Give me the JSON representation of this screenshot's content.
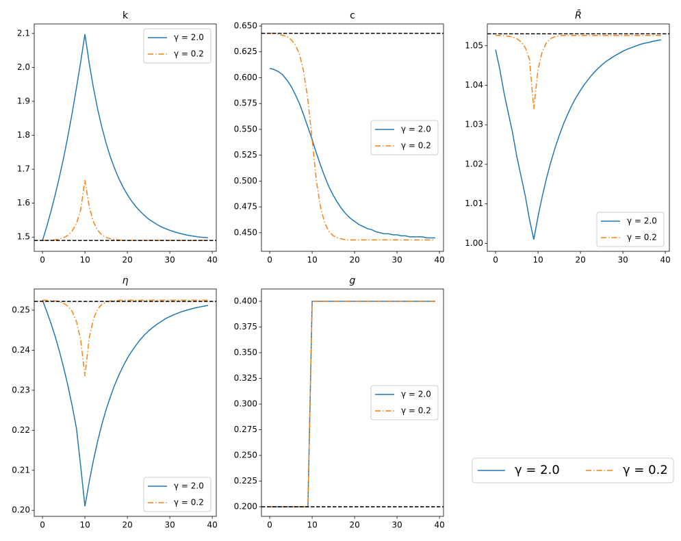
{
  "chart_data": [
    {
      "type": "line",
      "title": "k",
      "legend_loc": "upper right",
      "hline": 1.49,
      "hline_color": "#000000",
      "xlim": [
        -1.95,
        40.95
      ],
      "xticks": [
        0,
        10,
        20,
        30,
        40
      ],
      "ylim": [
        1.458,
        2.128
      ],
      "yticks": [
        1.5,
        1.6,
        1.7,
        1.8,
        1.9,
        {
          "value": 2,
          "label": "2.0"
        },
        2.1
      ],
      "x": [
        0,
        1,
        2,
        3,
        4,
        5,
        6,
        7,
        8,
        9,
        10,
        11,
        12,
        13,
        14,
        15,
        16,
        17,
        18,
        19,
        20,
        21,
        22,
        23,
        24,
        25,
        26,
        27,
        28,
        29,
        30,
        31,
        32,
        33,
        34,
        35,
        36,
        37,
        38,
        39
      ],
      "series": [
        {
          "name": "γ = 2.0",
          "color": "#1f77b4",
          "style": "solid",
          "values": [
            1.49,
            1.531,
            1.576,
            1.625,
            1.678,
            1.735,
            1.798,
            1.866,
            1.94,
            2.016,
            2.098,
            2.013,
            1.94,
            1.877,
            1.823,
            1.776,
            1.736,
            1.702,
            1.672,
            1.647,
            1.625,
            1.606,
            1.59,
            1.576,
            1.564,
            1.553,
            1.545,
            1.537,
            1.53,
            1.525,
            1.52,
            1.516,
            1.512,
            1.509,
            1.506,
            1.504,
            1.502,
            1.5,
            1.499,
            1.498
          ]
        },
        {
          "name": "γ = 0.2",
          "color": "#ff7f0e",
          "style": "dashdot",
          "values": [
            1.49,
            1.49,
            1.491,
            1.492,
            1.494,
            1.498,
            1.505,
            1.518,
            1.54,
            1.58,
            1.668,
            1.59,
            1.545,
            1.52,
            1.506,
            1.499,
            1.495,
            1.493,
            1.491,
            1.491,
            1.49,
            1.49,
            1.49,
            1.49,
            1.49,
            1.49,
            1.49,
            1.49,
            1.49,
            1.49,
            1.49,
            1.49,
            1.49,
            1.49,
            1.49,
            1.49,
            1.49,
            1.49,
            1.49,
            1.49
          ]
        }
      ]
    },
    {
      "type": "line",
      "title": "c",
      "legend_loc": "center right",
      "hline": 0.643,
      "hline_color": "#000000",
      "xlim": [
        -1.95,
        40.95
      ],
      "xticks": [
        0,
        10,
        20,
        30,
        40
      ],
      "ylim": [
        0.432,
        0.652
      ],
      "yticks": [
        {
          "value": 0.45,
          "label": "0.450"
        },
        0.475,
        {
          "value": 0.5,
          "label": "0.500"
        },
        0.525,
        {
          "value": 0.55,
          "label": "0.550"
        },
        0.575,
        {
          "value": 0.6,
          "label": "0.600"
        },
        0.625,
        {
          "value": 0.65,
          "label": "0.650"
        }
      ],
      "x": [
        0,
        1,
        2,
        3,
        4,
        5,
        6,
        7,
        8,
        9,
        10,
        11,
        12,
        13,
        14,
        15,
        16,
        17,
        18,
        19,
        20,
        21,
        22,
        23,
        24,
        25,
        26,
        27,
        28,
        29,
        30,
        31,
        32,
        33,
        34,
        35,
        36,
        37,
        38,
        39
      ],
      "series": [
        {
          "name": "γ = 2.0",
          "color": "#1f77b4",
          "style": "solid",
          "values": [
            0.609,
            0.608,
            0.606,
            0.603,
            0.598,
            0.592,
            0.584,
            0.575,
            0.564,
            0.552,
            0.54,
            0.527,
            0.515,
            0.504,
            0.494,
            0.486,
            0.479,
            0.473,
            0.468,
            0.464,
            0.461,
            0.458,
            0.456,
            0.454,
            0.453,
            0.451,
            0.45,
            0.449,
            0.449,
            0.448,
            0.448,
            0.447,
            0.447,
            0.446,
            0.446,
            0.446,
            0.446,
            0.445,
            0.445,
            0.445
          ]
        },
        {
          "name": "γ = 0.2",
          "color": "#ff7f0e",
          "style": "dashdot",
          "values": [
            0.643,
            0.643,
            0.642,
            0.641,
            0.64,
            0.637,
            0.632,
            0.623,
            0.606,
            0.578,
            0.54,
            0.5,
            0.474,
            0.459,
            0.451,
            0.447,
            0.445,
            0.444,
            0.443,
            0.443,
            0.443,
            0.443,
            0.443,
            0.443,
            0.443,
            0.443,
            0.443,
            0.443,
            0.443,
            0.443,
            0.443,
            0.443,
            0.443,
            0.443,
            0.443,
            0.443,
            0.443,
            0.443,
            0.443,
            0.443
          ]
        }
      ]
    },
    {
      "type": "line",
      "title": "R̄",
      "legend_loc": "lower right",
      "hline": 1.053,
      "hline_color": "#000000",
      "xlim": [
        -1.95,
        40.95
      ],
      "xticks": [
        0,
        10,
        20,
        30,
        40
      ],
      "ylim": [
        0.998,
        1.0555
      ],
      "yticks": [
        {
          "value": 1,
          "label": "1.00"
        },
        1.01,
        1.02,
        1.03,
        1.04,
        1.05
      ],
      "x": [
        0,
        1,
        2,
        3,
        4,
        5,
        6,
        7,
        8,
        9,
        10,
        11,
        12,
        13,
        14,
        15,
        16,
        17,
        18,
        19,
        20,
        21,
        22,
        23,
        24,
        25,
        26,
        27,
        28,
        29,
        30,
        31,
        32,
        33,
        34,
        35,
        36,
        37,
        38,
        39
      ],
      "series": [
        {
          "name": "γ = 2.0",
          "color": "#1f77b4",
          "style": "solid",
          "values": [
            1.049,
            1.044,
            1.038,
            1.033,
            1.028,
            1.022,
            1.017,
            1.012,
            1.006,
            1.001,
            1.0068,
            1.0119,
            1.0165,
            1.0205,
            1.0241,
            1.0273,
            1.0302,
            1.0327,
            1.035,
            1.037,
            1.0387,
            1.0403,
            1.0417,
            1.043,
            1.0441,
            1.0451,
            1.046,
            1.0467,
            1.0474,
            1.048,
            1.0486,
            1.0491,
            1.0495,
            1.0499,
            1.0503,
            1.0506,
            1.0508,
            1.0511,
            1.0513,
            1.0515
          ]
        },
        {
          "name": "γ = 0.2",
          "color": "#ff7f0e",
          "style": "dashdot",
          "values": [
            1.0526,
            1.0526,
            1.0525,
            1.0524,
            1.0522,
            1.0518,
            1.051,
            1.0495,
            1.0465,
            1.034,
            1.044,
            1.0485,
            1.0508,
            1.0518,
            1.0523,
            1.0525,
            1.0526,
            1.0526,
            1.0526,
            1.0526,
            1.0526,
            1.0526,
            1.0526,
            1.0526,
            1.0526,
            1.0526,
            1.0526,
            1.0526,
            1.0526,
            1.0526,
            1.0526,
            1.0526,
            1.0526,
            1.0526,
            1.0526,
            1.0526,
            1.0526,
            1.0526,
            1.0526,
            1.0526
          ]
        }
      ]
    },
    {
      "type": "line",
      "title": "η",
      "legend_loc": "lower right",
      "hline": 0.2522,
      "hline_color": "#000000",
      "xlim": [
        -1.95,
        40.95
      ],
      "xticks": [
        0,
        10,
        20,
        30,
        40
      ],
      "ylim": [
        0.1985,
        0.2553
      ],
      "yticks": [
        {
          "value": 0.2,
          "label": "0.20"
        },
        0.21,
        0.22,
        0.23,
        0.24,
        0.25
      ],
      "x": [
        0,
        1,
        2,
        3,
        4,
        5,
        6,
        7,
        8,
        9,
        10,
        11,
        12,
        13,
        14,
        15,
        16,
        17,
        18,
        19,
        20,
        21,
        22,
        23,
        24,
        25,
        26,
        27,
        28,
        29,
        30,
        31,
        32,
        33,
        34,
        35,
        36,
        37,
        38,
        39
      ],
      "series": [
        {
          "name": "γ = 2.0",
          "color": "#1f77b4",
          "style": "solid",
          "values": [
            0.2525,
            0.2497,
            0.2467,
            0.2434,
            0.2397,
            0.2356,
            0.2311,
            0.2261,
            0.2205,
            0.211,
            0.201,
            0.2071,
            0.2125,
            0.2173,
            0.2215,
            0.2252,
            0.2284,
            0.2313,
            0.2338,
            0.236,
            0.238,
            0.2397,
            0.2412,
            0.2426,
            0.2438,
            0.2448,
            0.2457,
            0.2465,
            0.2472,
            0.2479,
            0.2484,
            0.2489,
            0.2493,
            0.2497,
            0.25,
            0.2503,
            0.2506,
            0.2508,
            0.251,
            0.2512
          ]
        },
        {
          "name": "γ = 0.2",
          "color": "#ff7f0e",
          "style": "dashdot",
          "values": [
            0.2525,
            0.2525,
            0.2524,
            0.2523,
            0.2521,
            0.2517,
            0.251,
            0.2497,
            0.2472,
            0.2425,
            0.2335,
            0.243,
            0.2478,
            0.2503,
            0.2515,
            0.252,
            0.2523,
            0.2524,
            0.2525,
            0.2525,
            0.2525,
            0.2525,
            0.2525,
            0.2525,
            0.2525,
            0.2525,
            0.2525,
            0.2525,
            0.2525,
            0.2525,
            0.2525,
            0.2525,
            0.2525,
            0.2525,
            0.2525,
            0.2525,
            0.2525,
            0.2525,
            0.2525,
            0.2525
          ]
        }
      ]
    },
    {
      "type": "line",
      "title": "g",
      "legend_loc": "center right",
      "hline": 0.2,
      "hline_color": "#000000",
      "xlim": [
        -1.95,
        40.95
      ],
      "xticks": [
        0,
        10,
        20,
        30,
        40
      ],
      "ylim": [
        0.1907,
        0.412
      ],
      "yticks": [
        {
          "value": 0.2,
          "label": "0.200"
        },
        0.225,
        {
          "value": 0.25,
          "label": "0.250"
        },
        0.275,
        {
          "value": 0.3,
          "label": "0.300"
        },
        0.325,
        {
          "value": 0.35,
          "label": "0.350"
        },
        0.375,
        {
          "value": 0.4,
          "label": "0.400"
        }
      ],
      "x": [
        0,
        1,
        2,
        3,
        4,
        5,
        6,
        7,
        8,
        9,
        10,
        11,
        12,
        13,
        14,
        15,
        16,
        17,
        18,
        19,
        20,
        21,
        22,
        23,
        24,
        25,
        26,
        27,
        28,
        29,
        30,
        31,
        32,
        33,
        34,
        35,
        36,
        37,
        38,
        39
      ],
      "series": [
        {
          "name": "γ = 2.0",
          "color": "#1f77b4",
          "style": "solid",
          "values": [
            0.2,
            0.2,
            0.2,
            0.2,
            0.2,
            0.2,
            0.2,
            0.2,
            0.2,
            0.2,
            0.4,
            0.4,
            0.4,
            0.4,
            0.4,
            0.4,
            0.4,
            0.4,
            0.4,
            0.4,
            0.4,
            0.4,
            0.4,
            0.4,
            0.4,
            0.4,
            0.4,
            0.4,
            0.4,
            0.4,
            0.4,
            0.4,
            0.4,
            0.4,
            0.4,
            0.4,
            0.4,
            0.4,
            0.4,
            0.4
          ]
        },
        {
          "name": "γ = 0.2",
          "color": "#ff7f0e",
          "style": "dashdot",
          "values": [
            0.2,
            0.2,
            0.2,
            0.2,
            0.2,
            0.2,
            0.2,
            0.2,
            0.2,
            0.2,
            0.4,
            0.4,
            0.4,
            0.4,
            0.4,
            0.4,
            0.4,
            0.4,
            0.4,
            0.4,
            0.4,
            0.4,
            0.4,
            0.4,
            0.4,
            0.4,
            0.4,
            0.4,
            0.4,
            0.4,
            0.4,
            0.4,
            0.4,
            0.4,
            0.4,
            0.4,
            0.4,
            0.4,
            0.4,
            0.4
          ]
        }
      ]
    }
  ]
}
